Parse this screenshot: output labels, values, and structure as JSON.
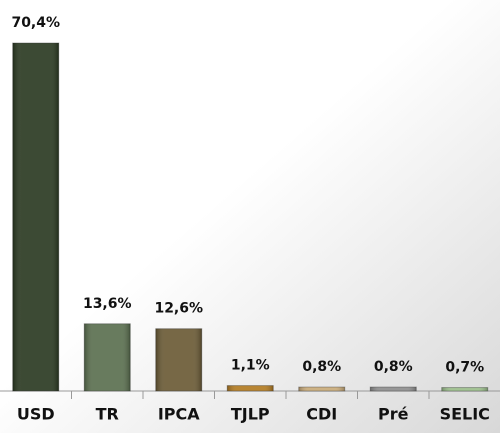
{
  "chart_data": {
    "type": "bar",
    "categories": [
      "USD",
      "TR",
      "IPCA",
      "TJLP",
      "CDI",
      "Pré",
      "SELIC"
    ],
    "values": [
      70.4,
      13.6,
      12.6,
      1.1,
      0.8,
      0.8,
      0.7
    ],
    "value_labels": [
      "70,4%",
      "13,6%",
      "12,6%",
      "1,1%",
      "0,8%",
      "0,8%",
      "0,7%"
    ],
    "colors": [
      "#2b3a22",
      "#5b7050",
      "#6b5b36",
      "#b27b22",
      "#c9ab7a",
      "#8e8e8e",
      "#9cbf8c"
    ]
  }
}
